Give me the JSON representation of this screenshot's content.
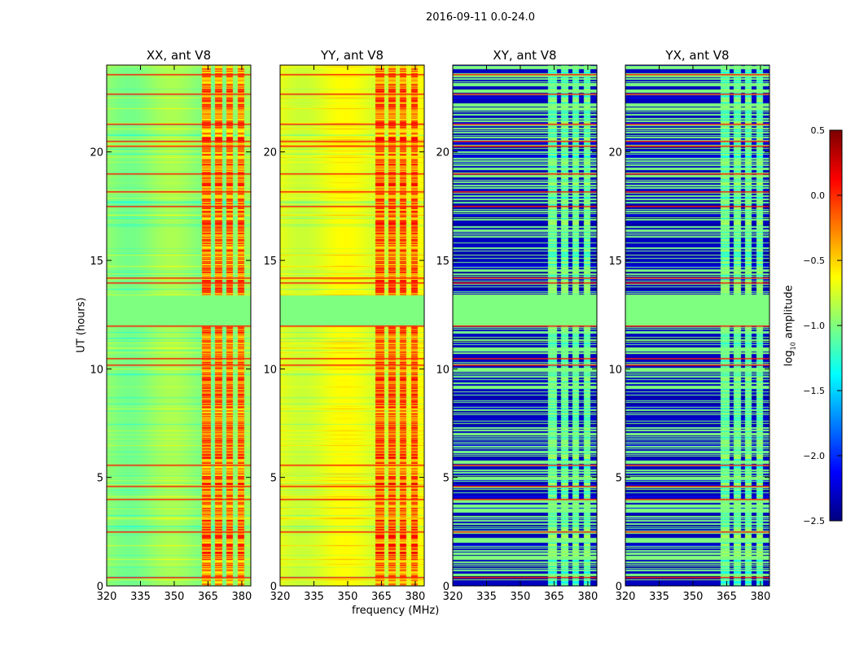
{
  "chart_data": {
    "type": "heatmap",
    "title": "2016-09-11 0.0-24.0",
    "xlabel": "frequency (MHz)",
    "ylabel": "UT (hours)",
    "xlim": [
      320,
      384
    ],
    "ylim": [
      0,
      24
    ],
    "xticks": [
      "320",
      "335",
      "350",
      "365",
      "380"
    ],
    "yticks": [
      "0",
      "5",
      "10",
      "15",
      "20"
    ],
    "colorbar": {
      "label": "log10 amplitude",
      "label_main": "log",
      "label_sub": "10",
      "label_rest": " amplitude",
      "vmin": -2.5,
      "vmax": 0.5,
      "ticks": [
        "0.5",
        "0.0",
        "−0.5",
        "−1.0",
        "−1.5",
        "−2.0",
        "−2.5"
      ],
      "colormap": "jet"
    },
    "rfi_channels_mhz": [
      [
        362,
        366
      ],
      [
        368,
        371
      ],
      [
        373,
        376
      ],
      [
        378,
        381
      ]
    ],
    "flagged_interval_hours": [
      12.0,
      13.4
    ],
    "flagged_value": -1.0,
    "red_lines_hours": [
      0.4,
      2.5,
      4.0,
      4.6,
      5.6,
      10.2,
      10.5,
      12.0,
      14.0,
      14.2,
      17.5,
      18.2,
      19.0,
      20.3,
      20.5,
      21.3,
      22.7,
      23.6
    ],
    "panels": [
      {
        "title": "XX, ant V8",
        "base": -0.95,
        "rfi": -0.25
      },
      {
        "title": "YY, ant V8",
        "base": -0.7,
        "rfi": -0.2
      },
      {
        "title": "XY, ant V8",
        "base": -2.3,
        "rfi": -1.3
      },
      {
        "title": "YX, ant V8",
        "base": -2.3,
        "rfi": -1.3
      }
    ]
  }
}
